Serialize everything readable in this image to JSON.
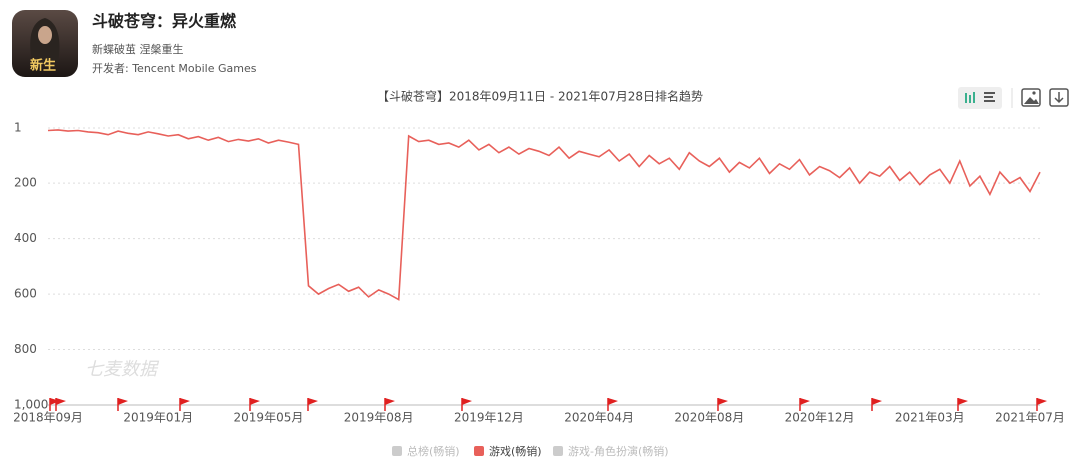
{
  "app": {
    "name": "斗破苍穹：异火重燃",
    "slogan": "新蝶破茧 涅槃重生",
    "developer": "开发者: Tencent Mobile Games"
  },
  "chart_data": {
    "type": "line",
    "title": "【斗破苍穹】2018年09月11日 - 2021年07月28日排名趋势",
    "watermark": "七麦数据",
    "categories": [
      "2018年09月",
      null,
      null,
      null,
      null,
      null,
      null,
      null,
      null,
      null,
      null,
      "2019年01月",
      null,
      null,
      null,
      null,
      null,
      null,
      null,
      null,
      null,
      null,
      "2019年05月",
      null,
      null,
      null,
      null,
      null,
      null,
      null,
      null,
      null,
      null,
      "2019年08月",
      null,
      null,
      null,
      null,
      null,
      null,
      null,
      null,
      null,
      null,
      "2019年12月",
      null,
      null,
      null,
      null,
      null,
      null,
      null,
      null,
      null,
      null,
      "2020年04月",
      null,
      null,
      null,
      null,
      null,
      null,
      null,
      null,
      null,
      null,
      "2020年08月",
      null,
      null,
      null,
      null,
      null,
      null,
      null,
      null,
      null,
      null,
      "2020年12月",
      null,
      null,
      null,
      null,
      null,
      null,
      null,
      null,
      null,
      null,
      "2021年03月",
      null,
      null,
      null,
      null,
      null,
      null,
      null,
      null,
      null,
      "2021年07月",
      null
    ],
    "series": [
      {
        "name": "游戏(畅销)",
        "color": "#e8605a",
        "values": [
          10,
          8,
          12,
          10,
          15,
          18,
          25,
          12,
          20,
          25,
          15,
          22,
          30,
          25,
          40,
          32,
          45,
          35,
          50,
          42,
          48,
          40,
          55,
          45,
          52,
          60,
          570,
          600,
          580,
          565,
          590,
          575,
          610,
          585,
          600,
          620,
          30,
          50,
          45,
          60,
          55,
          70,
          45,
          80,
          60,
          90,
          70,
          95,
          75,
          85,
          100,
          70,
          110,
          85,
          95,
          105,
          80,
          120,
          95,
          140,
          100,
          130,
          110,
          150,
          90,
          120,
          140,
          110,
          160,
          125,
          145,
          110,
          165,
          130,
          150,
          115,
          170,
          140,
          155,
          180,
          145,
          200,
          160,
          175,
          140,
          190,
          160,
          205,
          170,
          150,
          200,
          120,
          210,
          175,
          240,
          160,
          200,
          180,
          230,
          160
        ]
      }
    ],
    "legend": [
      {
        "label": "总榜(畅销)",
        "color": "#cccccc",
        "active": false
      },
      {
        "label": "游戏(畅销)",
        "color": "#e8605a",
        "active": true
      },
      {
        "label": "游戏-角色扮演(畅销)",
        "color": "#cccccc",
        "active": false
      }
    ],
    "ylim": [
      1,
      1000
    ],
    "y_reversed": true,
    "yticks": [
      1,
      200,
      400,
      600,
      800,
      {
        "value": 1000,
        "label": "1,000"
      }
    ],
    "grid": true
  }
}
